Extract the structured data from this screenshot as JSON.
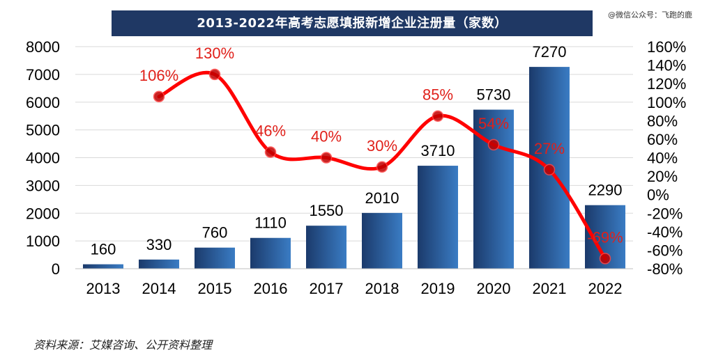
{
  "title": "2013-2022年高考志愿填报新增企业注册量（家数）",
  "watermark": "@微信公众号：飞跑的鹿",
  "source": "资料来源：艾媒咨询、公开资料整理",
  "colors": {
    "bar_dark": "#1b3a6b",
    "bar_light": "#3a7cc4",
    "line": "#ff0000",
    "point": "#c00000",
    "pct_label": "#e0201a",
    "title_bg": "#1f3864"
  },
  "chart_data": {
    "type": "bar",
    "categories": [
      "2013",
      "2014",
      "2015",
      "2016",
      "2017",
      "2018",
      "2019",
      "2020",
      "2021",
      "2022"
    ],
    "series": [
      {
        "values": [
          160,
          330,
          760,
          1110,
          1550,
          2010,
          3710,
          5730,
          7270,
          2290
        ],
        "axis": "left",
        "kind": "bar"
      },
      {
        "values": [
          null,
          106,
          130,
          46,
          40,
          30,
          85,
          54,
          27,
          -69
        ],
        "axis": "right",
        "kind": "line",
        "unit": "%"
      }
    ],
    "bar_labels": [
      "160",
      "330",
      "760",
      "1110",
      "1550",
      "2010",
      "3710",
      "5730",
      "7270",
      "2290"
    ],
    "pct_labels": [
      "",
      "106%",
      "130%",
      "46%",
      "40%",
      "30%",
      "85%",
      "54%",
      "27%",
      "-69%"
    ],
    "y_left": {
      "lim": [
        0,
        8000
      ],
      "ticks": [
        "0",
        "1000",
        "2000",
        "3000",
        "4000",
        "5000",
        "6000",
        "7000",
        "8000"
      ]
    },
    "y_right": {
      "lim": [
        -80,
        160
      ],
      "ticks": [
        "-80%",
        "-60%",
        "-40%",
        "-20%",
        "0%",
        "20%",
        "40%",
        "60%",
        "80%",
        "100%",
        "120%",
        "140%",
        "160%"
      ]
    },
    "grid": true
  }
}
